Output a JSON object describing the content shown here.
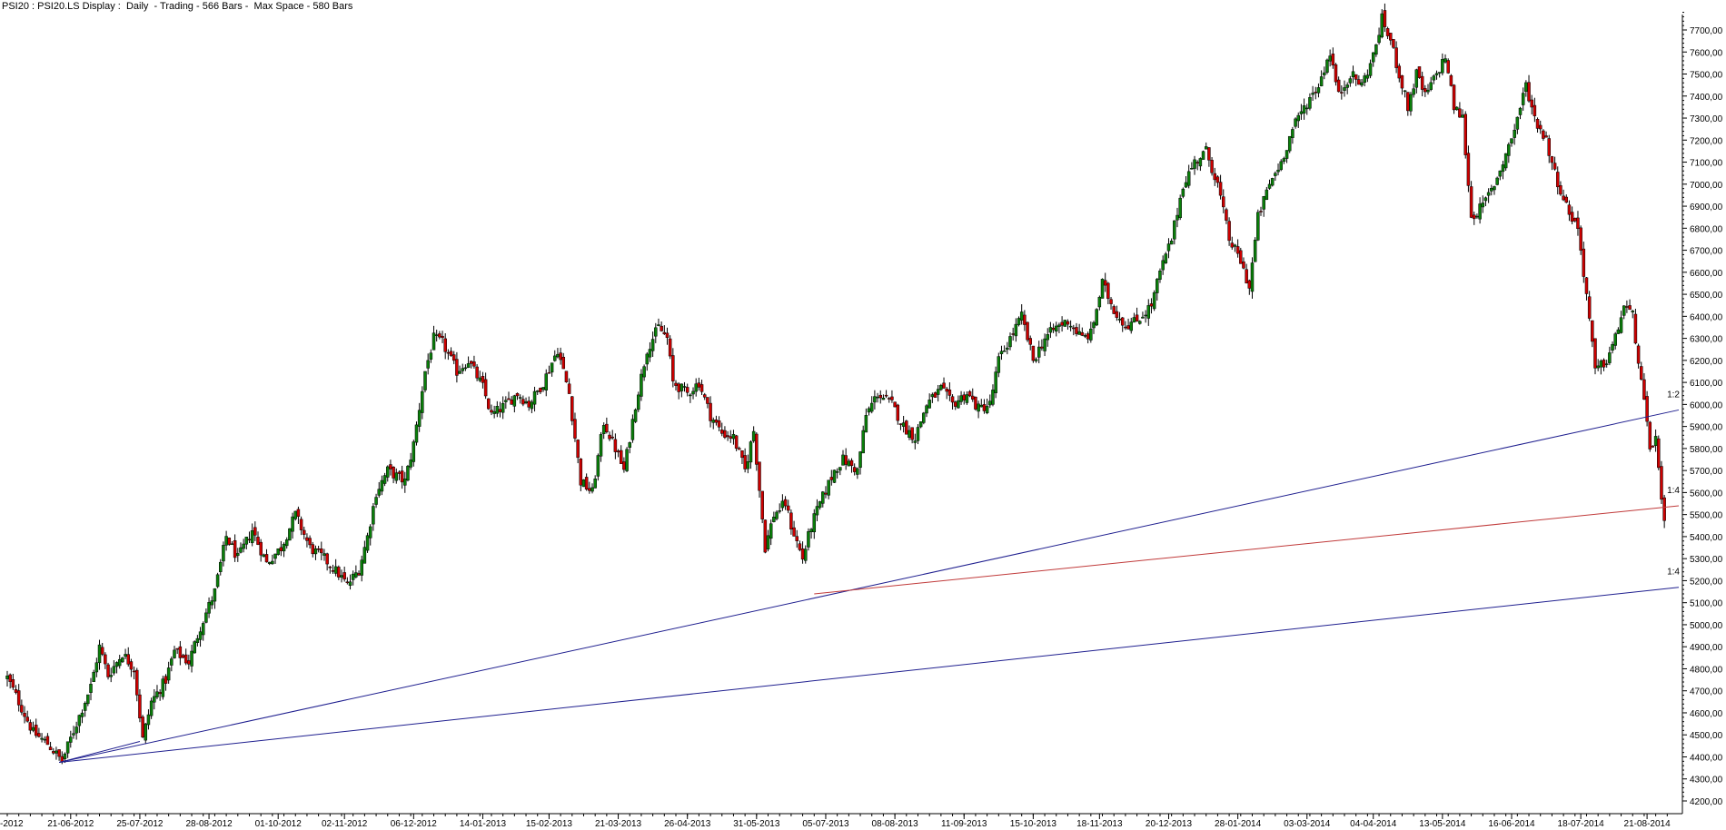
{
  "chart_data": {
    "type": "candlestick",
    "title": "PSI20 : PSI20.LS Display :  Daily  - Trading - 566 Bars -  Max Space - 580 Bars",
    "symbol": "PSI20",
    "y_tick_labels": [
      "4200,00",
      "4300,00",
      "4400,00",
      "4500,00",
      "4600,00",
      "4700,00",
      "4800,00",
      "4900,00",
      "5000,00",
      "5100,00",
      "5200,00",
      "5300,00",
      "5400,00",
      "5500,00",
      "5600,00",
      "5700,00",
      "5800,00",
      "5900,00",
      "6000,00",
      "6100,00",
      "6200,00",
      "6300,00",
      "6400,00",
      "6500,00",
      "6600,00",
      "6700,00",
      "6800,00",
      "6900,00",
      "7000,00",
      "7100,00",
      "7200,00",
      "7300,00",
      "7400,00",
      "7500,00",
      "7600,00",
      "7700,00"
    ],
    "ylim": [
      4150,
      7800
    ],
    "x_tick_labels": [
      "-2012",
      "21-06-2012",
      "25-07-2012",
      "28-08-2012",
      "01-10-2012",
      "02-11-2012",
      "06-12-2012",
      "14-01-2013",
      "15-02-2013",
      "21-03-2013",
      "26-04-2013",
      "31-05-2013",
      "05-07-2013",
      "08-08-2013",
      "11-09-2013",
      "15-10-2013",
      "18-11-2013",
      "20-12-2013",
      "28-01-2014",
      "03-03-2014",
      "04-04-2014",
      "13-05-2014",
      "16-06-2014",
      "18-07-2014",
      "21-08-2014"
    ],
    "x_tick_index": [
      0,
      22,
      46,
      70,
      94,
      117,
      141,
      165,
      188,
      212,
      236,
      260,
      284,
      308,
      332,
      356,
      379,
      403,
      427,
      451,
      474,
      498,
      522,
      546,
      569
    ],
    "total_slots": 580,
    "series_path": [
      [
        0,
        4760
      ],
      [
        4,
        4650
      ],
      [
        9,
        4510
      ],
      [
        14,
        4460
      ],
      [
        19,
        4380
      ],
      [
        26,
        4620
      ],
      [
        29,
        4720
      ],
      [
        32,
        4900
      ],
      [
        35,
        4770
      ],
      [
        40,
        4870
      ],
      [
        44,
        4800
      ],
      [
        47,
        4480
      ],
      [
        50,
        4650
      ],
      [
        55,
        4750
      ],
      [
        58,
        4880
      ],
      [
        63,
        4830
      ],
      [
        67,
        4990
      ],
      [
        72,
        5150
      ],
      [
        76,
        5400
      ],
      [
        80,
        5300
      ],
      [
        85,
        5430
      ],
      [
        90,
        5280
      ],
      [
        95,
        5350
      ],
      [
        100,
        5500
      ],
      [
        105,
        5350
      ],
      [
        110,
        5300
      ],
      [
        115,
        5230
      ],
      [
        118,
        5180
      ],
      [
        122,
        5250
      ],
      [
        125,
        5400
      ],
      [
        128,
        5600
      ],
      [
        132,
        5700
      ],
      [
        138,
        5650
      ],
      [
        141,
        5820
      ],
      [
        145,
        6150
      ],
      [
        148,
        6300
      ],
      [
        151,
        6280
      ],
      [
        156,
        6150
      ],
      [
        160,
        6200
      ],
      [
        165,
        6080
      ],
      [
        168,
        5950
      ],
      [
        173,
        6000
      ],
      [
        177,
        6050
      ],
      [
        181,
        6000
      ],
      [
        186,
        6100
      ],
      [
        191,
        6250
      ],
      [
        195,
        6050
      ],
      [
        199,
        5650
      ],
      [
        203,
        5600
      ],
      [
        207,
        5920
      ],
      [
        211,
        5800
      ],
      [
        214,
        5700
      ],
      [
        218,
        6000
      ],
      [
        222,
        6250
      ],
      [
        226,
        6350
      ],
      [
        229,
        6300
      ],
      [
        231,
        6100
      ],
      [
        236,
        6050
      ],
      [
        240,
        6100
      ],
      [
        244,
        5950
      ],
      [
        248,
        5870
      ],
      [
        252,
        5850
      ],
      [
        256,
        5700
      ],
      [
        259,
        5880
      ],
      [
        263,
        5350
      ],
      [
        266,
        5500
      ],
      [
        270,
        5550
      ],
      [
        272,
        5450
      ],
      [
        276,
        5300
      ],
      [
        279,
        5450
      ],
      [
        282,
        5550
      ],
      [
        287,
        5700
      ],
      [
        290,
        5750
      ],
      [
        295,
        5700
      ],
      [
        298,
        5950
      ],
      [
        302,
        6050
      ],
      [
        307,
        6000
      ],
      [
        311,
        5900
      ],
      [
        315,
        5850
      ],
      [
        319,
        6000
      ],
      [
        324,
        6070
      ],
      [
        328,
        6000
      ],
      [
        333,
        6050
      ],
      [
        337,
        5980
      ],
      [
        341,
        6000
      ],
      [
        344,
        6200
      ],
      [
        348,
        6300
      ],
      [
        352,
        6400
      ],
      [
        356,
        6200
      ],
      [
        360,
        6300
      ],
      [
        364,
        6350
      ],
      [
        368,
        6380
      ],
      [
        373,
        6300
      ],
      [
        376,
        6320
      ],
      [
        380,
        6550
      ],
      [
        384,
        6430
      ],
      [
        388,
        6360
      ],
      [
        392,
        6380
      ],
      [
        397,
        6450
      ],
      [
        400,
        6600
      ],
      [
        404,
        6750
      ],
      [
        408,
        7000
      ],
      [
        412,
        7100
      ],
      [
        416,
        7150
      ],
      [
        420,
        7000
      ],
      [
        424,
        6750
      ],
      [
        428,
        6650
      ],
      [
        431,
        6530
      ],
      [
        434,
        6850
      ],
      [
        438,
        7000
      ],
      [
        442,
        7100
      ],
      [
        446,
        7250
      ],
      [
        450,
        7350
      ],
      [
        455,
        7450
      ],
      [
        459,
        7600
      ],
      [
        462,
        7400
      ],
      [
        466,
        7500
      ],
      [
        470,
        7450
      ],
      [
        474,
        7580
      ],
      [
        477,
        7750
      ],
      [
        480,
        7650
      ],
      [
        483,
        7500
      ],
      [
        486,
        7350
      ],
      [
        489,
        7500
      ],
      [
        492,
        7400
      ],
      [
        496,
        7500
      ],
      [
        499,
        7580
      ],
      [
        502,
        7350
      ],
      [
        505,
        7300
      ],
      [
        508,
        6850
      ],
      [
        512,
        6900
      ],
      [
        516,
        7000
      ],
      [
        519,
        7100
      ],
      [
        523,
        7250
      ],
      [
        527,
        7450
      ],
      [
        530,
        7300
      ],
      [
        534,
        7200
      ],
      [
        537,
        7050
      ],
      [
        541,
        6900
      ],
      [
        545,
        6800
      ],
      [
        548,
        6500
      ],
      [
        551,
        6150
      ],
      [
        555,
        6200
      ],
      [
        558,
        6300
      ],
      [
        561,
        6450
      ],
      [
        564,
        6400
      ],
      [
        567,
        6100
      ],
      [
        570,
        5800
      ],
      [
        572,
        5850
      ],
      [
        574,
        5550
      ],
      [
        575,
        5450
      ]
    ],
    "trendlines": [
      {
        "label": "1:2",
        "color": "#1f1f8f",
        "from": [
          18,
          4375
        ],
        "to": [
          580,
          5975
        ]
      },
      {
        "label": "1:4",
        "color": "#1f1f8f",
        "from": [
          18,
          4375
        ],
        "to": [
          580,
          5170
        ]
      },
      {
        "label": "1:4",
        "color": "#c03a3a",
        "from": [
          280,
          5140
        ],
        "to": [
          580,
          5540
        ]
      },
      {
        "label": "",
        "color": "#1f1f8f",
        "from": [
          18,
          4375
        ],
        "to": [
          46,
          4470
        ]
      }
    ],
    "colors": {
      "up": "#0a7f0a",
      "down": "#cc0000",
      "wick": "#000000",
      "axis": "#000000"
    }
  }
}
